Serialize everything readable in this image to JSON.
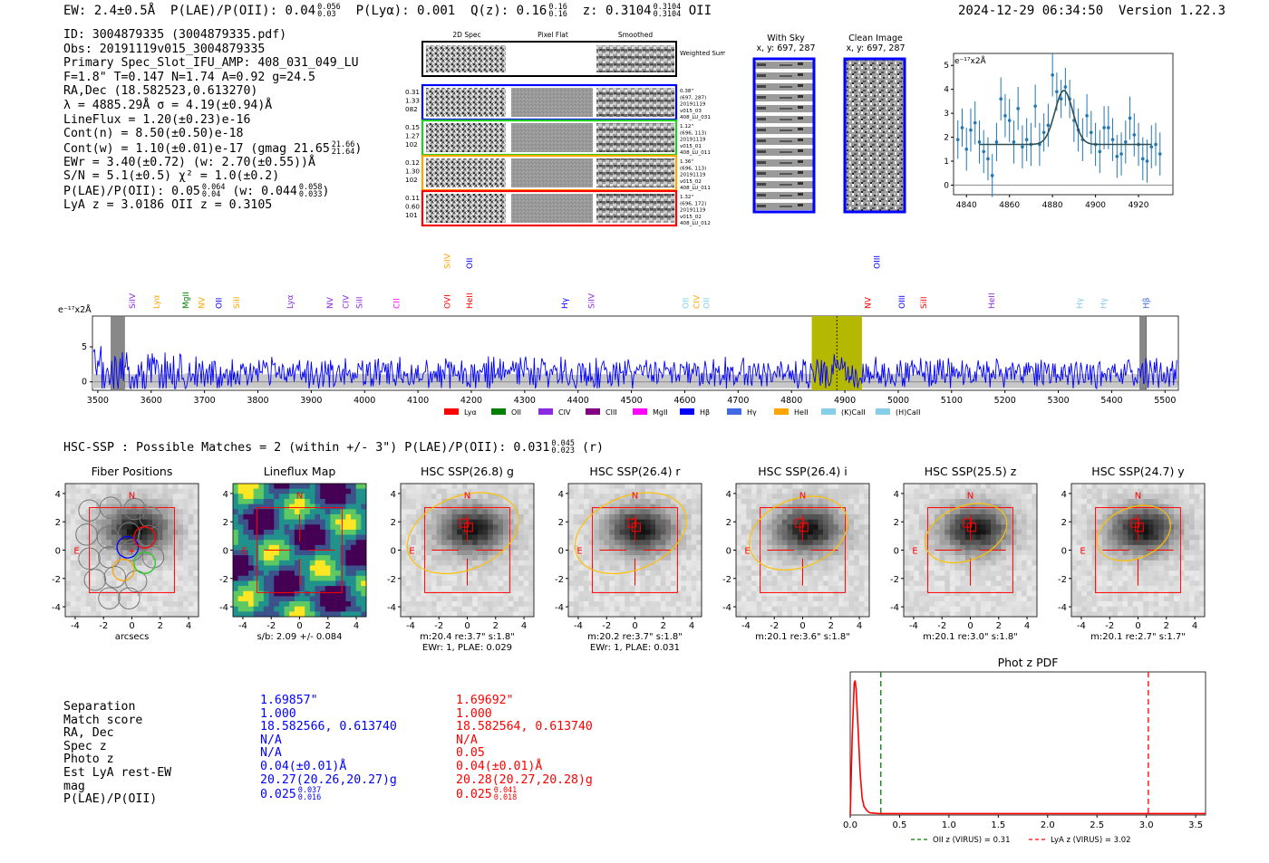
{
  "header": {
    "ew": "EW: 2.4±0.5Å",
    "plae_label": "P(LAE)/P(OII): 0.04",
    "plae_sup": "0.056",
    "plae_sub": "0.03",
    "plya": "P(Lyα): 0.001",
    "qz_label": "Q(z): 0.16",
    "qz_sup": "0.16",
    "qz_sub": "0.16",
    "z_label": "z: 0.3104",
    "z_sup": "0.3104",
    "z_sub": "0.3104",
    "z_line": "OII",
    "timestamp": "2024-12-29 06:34:50",
    "version": "Version 1.22.3"
  },
  "info": {
    "id": "ID: 3004879335 (3004879335.pdf)",
    "obs": "Obs: 20191119v015_3004879335",
    "primary": "Primary Spec_Slot_IFU_AMP: 408_031_049_LU",
    "fparams": "F=1.8\"  T=0.147  N=1.74  A=0.92  g=24.5",
    "radec": "RA,Dec (18.582523,0.613270)",
    "lambda": "λ = 4885.29Å  σ = 4.19(±0.94)Å",
    "lineflux": "LineFlux = 1.20(±0.23)e-16",
    "contn": "Cont(n) = 8.50(±0.50)e-18",
    "contw": "Cont(w) = 1.10(±0.01)e-17 (gmag 21.65",
    "contw_sup": "21.66",
    "contw_sub": "21.64",
    "ewr": "EWr = 3.40(±0.72) (w: 2.70(±0.55))Å",
    "sn": "S/N = 5.1(±0.5)  χ² = 1.0(±0.2)",
    "plae_a": "P(LAE)/P(OII): 0.05",
    "plae_a_sup": "0.064",
    "plae_a_sub": "0.04",
    "plae_b": "(w: 0.044",
    "plae_b_sup": "0.058",
    "plae_b_sub": "0.033",
    "lya": "LyA z = 3.0186  OII z = 0.3105"
  },
  "spec2d": {
    "col_labels": [
      "2D Spec",
      "Pixel Flat",
      "Smoothed"
    ],
    "weighted": "Weighted Sum",
    "rows": [
      {
        "left": [
          "0.31",
          "1.33",
          "082"
        ],
        "right": [
          "0.38\"",
          "(697, 287)",
          "20191119",
          "v015_03",
          "408_LU_031"
        ],
        "color": "#0000ff"
      },
      {
        "left": [
          "0.15",
          "1.27",
          "102"
        ],
        "right": [
          "1.12\"",
          "(696, 113)",
          "20191119",
          "v015_01",
          "408_LU_011"
        ],
        "color": "#22cc22"
      },
      {
        "left": [
          "0.12",
          "1.30",
          "102"
        ],
        "right": [
          "1.36\"",
          "(696, 113)",
          "20191119",
          "v015_02",
          "408_LU_011"
        ],
        "color": "#ffa500"
      },
      {
        "left": [
          "0.11",
          "0.60",
          "101"
        ],
        "right": [
          "1.32\"",
          "(696, 172)",
          "20191119",
          "v015_02",
          "408_LU_012"
        ],
        "color": "#ff0000"
      }
    ]
  },
  "sky": {
    "title": "With Sky",
    "coords": "x, y: 697, 287"
  },
  "clean": {
    "title": "Clean Image",
    "coords": "x, y: 697, 287"
  },
  "colors": {
    "blue": "#0000ff",
    "red": "#ff0000",
    "olive": "#b5b800",
    "steel": "#1f77b4"
  },
  "chart_data": [
    {
      "type": "line",
      "name": "line-fit",
      "ylabel": "e⁻¹⁷x2Å",
      "xlim": [
        4834,
        4936
      ],
      "ylim": [
        -0.4,
        5.5
      ],
      "xticks": [
        4840,
        4860,
        4880,
        4900,
        4920
      ],
      "yticks": [
        0,
        1,
        2,
        3,
        4,
        5
      ],
      "fit": {
        "continuum": 1.7,
        "amplitude": 2.25,
        "center": 4885.3,
        "sigma": 4.19
      },
      "x": [
        4836,
        4838,
        4840,
        4842,
        4844,
        4846,
        4848,
        4850,
        4852,
        4854,
        4856,
        4858,
        4860,
        4862,
        4864,
        4866,
        4868,
        4870,
        4872,
        4874,
        4876,
        4878,
        4880,
        4882,
        4884,
        4886,
        4888,
        4890,
        4892,
        4894,
        4896,
        4898,
        4900,
        4902,
        4904,
        4906,
        4908,
        4910,
        4912,
        4914,
        4916,
        4918,
        4920,
        4922,
        4924,
        4926,
        4928,
        4930
      ],
      "y": [
        1.9,
        2.4,
        1.5,
        2.3,
        2.6,
        1.8,
        1.4,
        1.1,
        0.4,
        1.8,
        3.6,
        2.9,
        2.7,
        1.8,
        3.2,
        1.6,
        1.9,
        1.7,
        3.3,
        1.7,
        2.2,
        2.5,
        4.6,
        3.9,
        3.6,
        4.1,
        3.6,
        2.7,
        2.3,
        1.9,
        2.9,
        2.2,
        1.7,
        1.4,
        2.4,
        2.4,
        1.9,
        1.2,
        1.3,
        1.8,
        2.8,
        2.1,
        1.7,
        1.1,
        1.0,
        1.6,
        1.7,
        1.3
      ],
      "err": [
        0.8,
        0.8,
        0.9,
        0.9,
        0.9,
        0.9,
        0.9,
        0.9,
        0.9,
        0.8,
        0.9,
        0.9,
        0.9,
        0.9,
        0.9,
        0.9,
        0.9,
        0.9,
        0.9,
        0.9,
        0.8,
        0.9,
        0.9,
        0.8,
        0.8,
        0.8,
        0.8,
        0.9,
        0.9,
        0.9,
        0.9,
        0.9,
        0.9,
        0.9,
        0.9,
        0.9,
        0.9,
        0.9,
        0.9,
        0.9,
        0.9,
        0.9,
        0.9,
        0.9,
        0.9,
        0.9,
        0.9,
        0.9
      ]
    },
    {
      "type": "line",
      "name": "full-spectrum",
      "ylabel": "e⁻¹⁷x2Å",
      "xlim": [
        3490,
        5525
      ],
      "ylim": [
        -1.2,
        9.4
      ],
      "xticks": [
        3500,
        3600,
        3700,
        3800,
        3900,
        4000,
        4100,
        4200,
        4300,
        4400,
        4500,
        4600,
        4700,
        4800,
        4900,
        5000,
        5100,
        5200,
        5300,
        5400,
        5500
      ],
      "yticks": [
        0,
        5
      ],
      "highlight": {
        "from": 4838,
        "to": 4932,
        "center": 4885
      },
      "masked": [
        [
          3525,
          3550
        ],
        [
          5453,
          5465
        ]
      ],
      "lines": [
        {
          "name": "SiIV",
          "x": 3565,
          "color": "#8a2be2",
          "level": 0
        },
        {
          "name": "Lyα",
          "x": 3610,
          "color": "#ffa500",
          "level": 0
        },
        {
          "name": "MgII",
          "x": 3665,
          "color": "#008000",
          "level": 0
        },
        {
          "name": "NV",
          "x": 3695,
          "color": "#ffa500",
          "level": 0
        },
        {
          "name": "OII",
          "x": 3727,
          "color": "#0000ff",
          "level": 0
        },
        {
          "name": "SiII",
          "x": 3760,
          "color": "#ffa500",
          "level": 0
        },
        {
          "name": "Lyα",
          "x": 3860,
          "color": "#8a2be2",
          "level": 0
        },
        {
          "name": "NV",
          "x": 3935,
          "color": "#8a2be2",
          "level": 0
        },
        {
          "name": "CIV",
          "x": 3965,
          "color": "#8a2be2",
          "level": 0
        },
        {
          "name": "SiII",
          "x": 3990,
          "color": "#8a2be2",
          "level": 0
        },
        {
          "name": "CII",
          "x": 4060,
          "color": "#ff00ff",
          "level": 0
        },
        {
          "name": "OVI",
          "x": 4155,
          "color": "#ff0000",
          "level": 0
        },
        {
          "name": "HeII",
          "x": 4197,
          "color": "#ff0000",
          "level": 0
        },
        {
          "name": "SiIV",
          "x": 4155,
          "color": "#ffa500",
          "level": 1
        },
        {
          "name": "OII",
          "x": 4197,
          "color": "#0000ff",
          "level": 1
        },
        {
          "name": "Hγ",
          "x": 4375,
          "color": "#0000ff",
          "level": 0
        },
        {
          "name": "SiIV",
          "x": 4425,
          "color": "#8a2be2",
          "level": 0
        },
        {
          "name": "OII",
          "x": 4602,
          "color": "#87ceeb",
          "level": 0
        },
        {
          "name": "CIV",
          "x": 4622,
          "color": "#ffa500",
          "level": 0
        },
        {
          "name": "OII",
          "x": 4641,
          "color": "#87ceeb",
          "level": 0
        },
        {
          "name": "NV",
          "x": 4943,
          "color": "#ff0000",
          "level": 0
        },
        {
          "name": "OIII",
          "x": 4960,
          "color": "#0000ff",
          "level": 1
        },
        {
          "name": "OIII",
          "x": 5007,
          "color": "#0000ff",
          "level": 0
        },
        {
          "name": "SiII",
          "x": 5048,
          "color": "#ff0000",
          "level": 0
        },
        {
          "name": "HeII",
          "x": 5175,
          "color": "#8a2be2",
          "level": 0
        },
        {
          "name": "Hγ",
          "x": 5340,
          "color": "#87ceeb",
          "level": 0
        },
        {
          "name": "Hγ",
          "x": 5385,
          "color": "#87ceeb",
          "level": 0
        },
        {
          "name": "Hβ",
          "x": 5465,
          "color": "#4169e1",
          "level": 0
        }
      ],
      "legend": [
        {
          "label": "Lyα",
          "color": "#ff0000"
        },
        {
          "label": "OII",
          "color": "#008000"
        },
        {
          "label": "CIV",
          "color": "#8a2be2"
        },
        {
          "label": "CIII",
          "color": "#800080"
        },
        {
          "label": "MgII",
          "color": "#ff00ff"
        },
        {
          "label": "Hβ",
          "color": "#0000ff"
        },
        {
          "label": "Hγ",
          "color": "#4169e1"
        },
        {
          "label": "HeII",
          "color": "#ffa500"
        },
        {
          "label": "(K)CaII",
          "color": "#87ceeb"
        },
        {
          "label": "(H)CaII",
          "color": "#87ceeb"
        }
      ]
    },
    {
      "type": "line",
      "name": "phot-z-pdf",
      "title": "Phot z PDF",
      "xlim": [
        0,
        3.6
      ],
      "ylim": [
        0,
        1.0
      ],
      "xticks": [
        0.0,
        0.5,
        1.0,
        1.5,
        2.0,
        2.5,
        3.0,
        3.5
      ],
      "x": [
        0.0,
        0.02,
        0.04,
        0.05,
        0.06,
        0.08,
        0.1,
        0.12,
        0.14,
        0.17,
        0.2,
        0.25,
        0.3,
        0.5,
        1.0,
        2.0,
        3.0,
        3.6
      ],
      "y": [
        0.0,
        0.55,
        0.92,
        0.94,
        0.88,
        0.6,
        0.3,
        0.12,
        0.06,
        0.03,
        0.015,
        0.012,
        0.01,
        0.01,
        0.01,
        0.01,
        0.01,
        0.01
      ],
      "vlines": [
        {
          "x": 0.31,
          "color": "#008000",
          "label": "OII z (VIRUS) = 0.31"
        },
        {
          "x": 3.02,
          "color": "#ff0000",
          "label": "LyA z (VIRUS) = 3.02"
        }
      ]
    }
  ],
  "hsc": {
    "summary": "HSC-SSP : Possible Matches = 2 (within +/- 3\")  P(LAE)/P(OII): 0.031",
    "summary_sup": "0.045",
    "summary_sub": "0.023",
    "summary_band": "(r)",
    "axis_ticks": [
      "-4",
      "-2",
      "0",
      "2",
      "4"
    ],
    "panels": [
      {
        "title": "Fiber Positions",
        "cap1": "arcsecs",
        "cap2": ""
      },
      {
        "title": "Lineflux Map",
        "cap1": "s/b: 2.09 +/- 0.084",
        "cap2": ""
      },
      {
        "title": "HSC SSP(26.8) g",
        "cap1": "m:20.4  re:3.7\"  s:1.8\"",
        "cap2": "EWr: 1, PLAE: 0.029"
      },
      {
        "title": "HSC SSP(26.4) r",
        "cap1": "m:20.2  re:3.7\"  s:1.8\"",
        "cap2": "EWr: 1, PLAE: 0.031"
      },
      {
        "title": "HSC SSP(26.4) i",
        "cap1": "m:20.1  re:3.6\"  s:1.8\"",
        "cap2": ""
      },
      {
        "title": "HSC SSP(25.5) z",
        "cap1": "m:20.1  re:3.0\"  s:1.8\"",
        "cap2": ""
      },
      {
        "title": "HSC SSP(24.7) y",
        "cap1": "m:20.1  re:2.7\"  s:1.7\"",
        "cap2": ""
      }
    ],
    "north": "N",
    "east": "E"
  },
  "matches": {
    "labels": [
      "Separation",
      "Match score",
      "RA, Dec",
      "Spec z",
      "Photo z",
      "Est LyA rest-EW",
      "mag",
      "P(LAE)/P(OII)"
    ],
    "blue": [
      "1.69857\"",
      "1.000",
      "18.582566, 0.613740",
      "N/A",
      "N/A",
      "0.04(±0.01)Å",
      "20.27(20.26,20.27)g",
      "0.025"
    ],
    "blue_sup": "0.037",
    "blue_sub": "0.016",
    "red": [
      "1.69692\"",
      "1.000",
      "18.582564, 0.613740",
      "N/A",
      "0.05",
      "0.04(±0.01)Å",
      "20.28(20.27,20.28)g",
      "0.025"
    ],
    "red_sup": "0.041",
    "red_sub": "0.018"
  }
}
